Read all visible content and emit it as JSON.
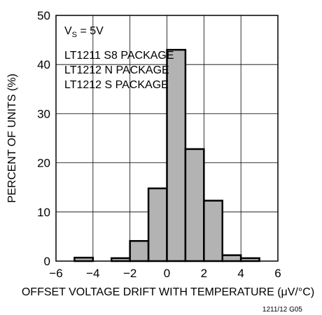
{
  "chart_data": {
    "type": "bar",
    "title": "",
    "xlabel": "OFFSET VOLTAGE DRIFT WITH TEMPERATURE (μV/°C)",
    "ylabel": "PERCENT OF UNITS (%)",
    "xlim": [
      -6,
      6
    ],
    "ylim": [
      0,
      50
    ],
    "xticks": [
      "−6",
      "−4",
      "−2",
      "0",
      "2",
      "4",
      "6"
    ],
    "yticks": [
      "0",
      "10",
      "20",
      "30",
      "40",
      "50"
    ],
    "grid": true,
    "bins": [
      {
        "x0": -5,
        "x1": -4,
        "value": 0.7
      },
      {
        "x0": -4,
        "x1": -3,
        "value": 0
      },
      {
        "x0": -3,
        "x1": -2,
        "value": 0.6
      },
      {
        "x0": -2,
        "x1": -1,
        "value": 4.1
      },
      {
        "x0": -1,
        "x1": 0,
        "value": 14.8
      },
      {
        "x0": 0,
        "x1": 1,
        "value": 43
      },
      {
        "x0": 1,
        "x1": 2,
        "value": 22.8
      },
      {
        "x0": 2,
        "x1": 3,
        "value": 12.3
      },
      {
        "x0": 3,
        "x1": 4,
        "value": 1.2
      },
      {
        "x0": 4,
        "x1": 5,
        "value": 0.6
      }
    ],
    "annotation": {
      "condition": "V",
      "condition_sub": "S",
      "condition_value": " = 5V",
      "packages": [
        "LT1211 S8 PACKAGE",
        "LT1212 N PACKAGE",
        "LT1212 S PACKAGE"
      ]
    },
    "figure_id": "1211/12 G05",
    "colors": {
      "bar_fill": "#b3b3b3",
      "bar_stroke": "#000000",
      "grid": "#000000"
    }
  }
}
